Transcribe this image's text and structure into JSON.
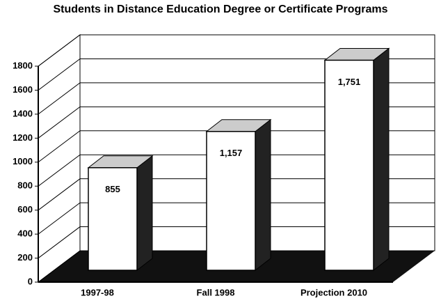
{
  "chart_data": {
    "type": "bar",
    "title": "Students in Distance Education Degree or Certificate Programs",
    "categories": [
      "1997-98",
      "Fall 1998",
      "Projection 2010"
    ],
    "values": [
      855,
      1157,
      1751
    ],
    "value_labels": [
      "855",
      "1,157",
      "1,751"
    ],
    "color": "#ffffff",
    "ylim": [
      0,
      1800
    ],
    "yticks": [
      0,
      200,
      400,
      600,
      800,
      1000,
      1200,
      1400,
      1600,
      1800
    ],
    "grid": true
  }
}
